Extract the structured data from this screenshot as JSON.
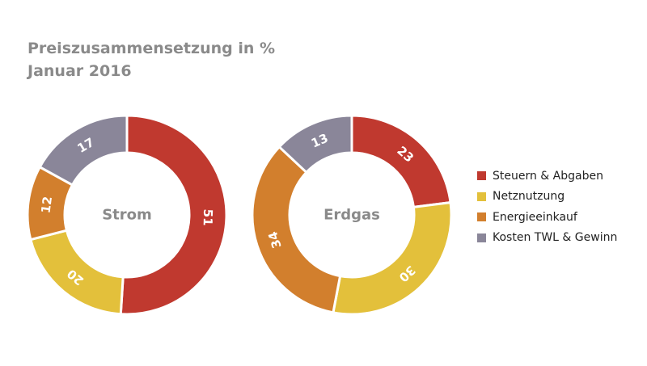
{
  "title": "Preiszusammensetzung in %",
  "subtitle": "Januar 2016",
  "colors": {
    "steuern": "#c0392f",
    "netz": "#e3c03b",
    "energie": "#d27f2d",
    "kosten": "#8a8699",
    "center_label": "#8a8a8a"
  },
  "legend": [
    {
      "label": "Steuern & Abgaben",
      "color": "#c0392f"
    },
    {
      "label": "Netznutzung",
      "color": "#e3c03b"
    },
    {
      "label": "Energieeinkauf",
      "color": "#d27f2d"
    },
    {
      "label": "Kosten TWL & Gewinn",
      "color": "#8a8699"
    }
  ],
  "chart_data": [
    {
      "type": "pie",
      "center_label": "Strom",
      "categories": [
        "Steuern & Abgaben",
        "Netznutzung",
        "Energieeinkauf",
        "Kosten TWL & Gewinn"
      ],
      "values": [
        51,
        20,
        12,
        17
      ],
      "data_labels": [
        "51",
        "20",
        "12",
        "17"
      ]
    },
    {
      "type": "pie",
      "center_label": "Erdgas",
      "categories": [
        "Steuern & Abgaben",
        "Netznutzung",
        "Energieeinkauf",
        "Kosten TWL & Gewinn"
      ],
      "values": [
        23,
        30,
        34,
        13
      ],
      "data_labels": [
        "23",
        "30",
        "34",
        "13"
      ]
    }
  ]
}
